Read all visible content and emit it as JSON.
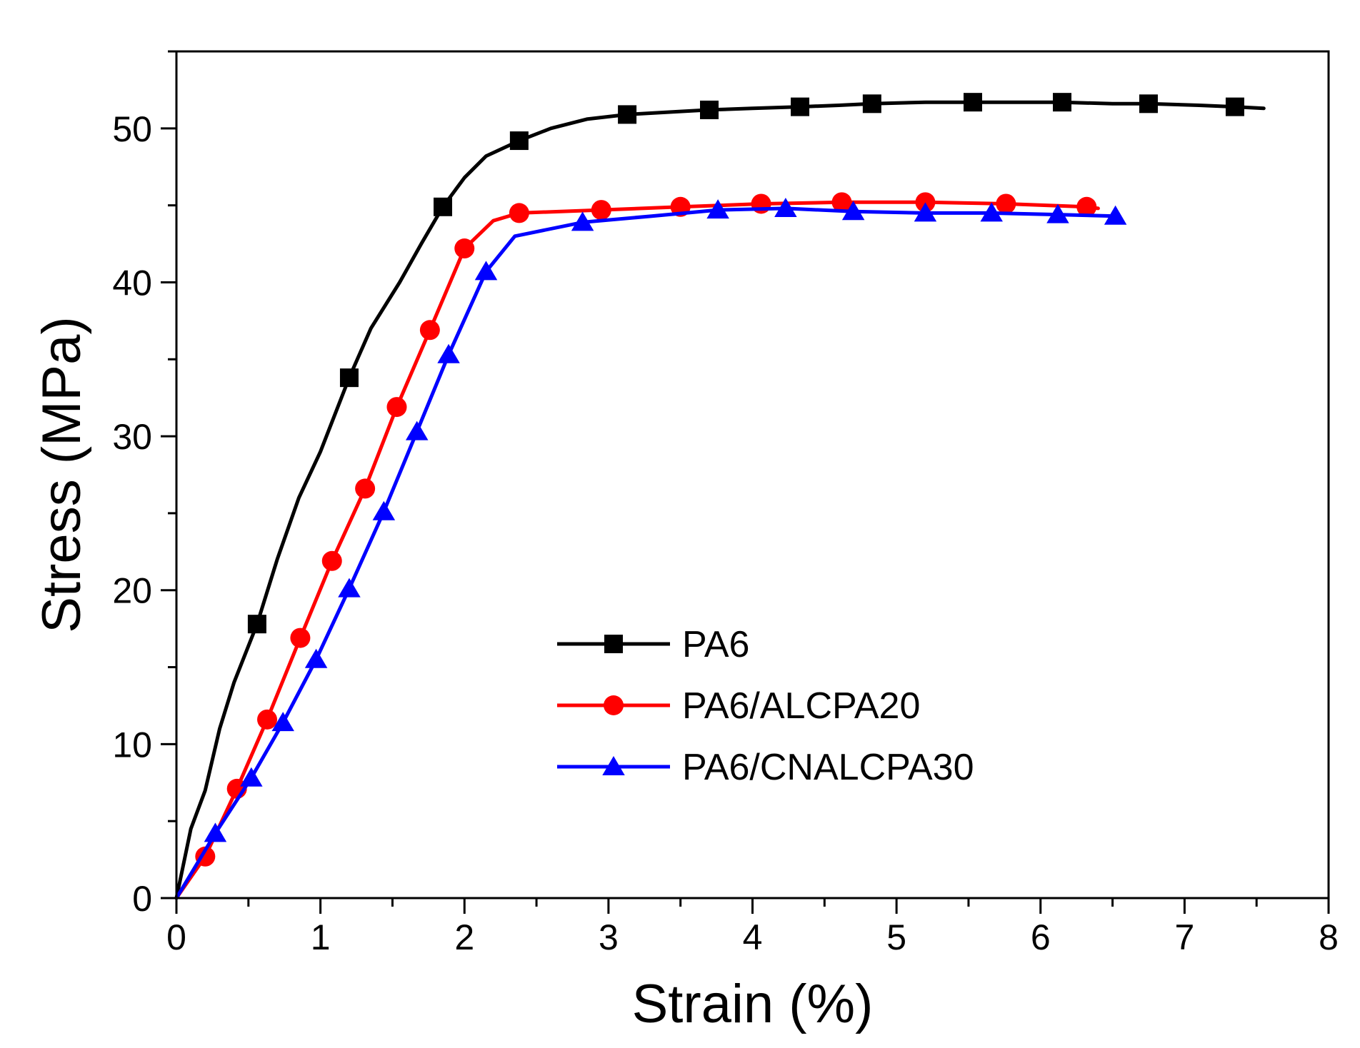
{
  "chart_data": {
    "type": "line",
    "title": "",
    "xlabel": "Strain (%)",
    "ylabel": "Stress (MPa)",
    "xlim": [
      0,
      8
    ],
    "ylim": [
      0,
      55
    ],
    "xticks": [
      0,
      1,
      2,
      3,
      4,
      5,
      6,
      7,
      8
    ],
    "yticks": [
      0,
      10,
      20,
      30,
      40,
      50
    ],
    "grid": false,
    "legend_position": "lower-center",
    "series": [
      {
        "name": "PA6",
        "color": "#000000",
        "marker": "square",
        "x": [
          0,
          0.1,
          0.2,
          0.3,
          0.4,
          0.56,
          0.7,
          0.85,
          1.0,
          1.2,
          1.35,
          1.55,
          1.7,
          1.85,
          2.0,
          2.15,
          2.38,
          2.6,
          2.85,
          3.13,
          3.5,
          3.7,
          4.0,
          4.33,
          4.6,
          4.83,
          5.2,
          5.53,
          5.9,
          6.15,
          6.5,
          6.75,
          7.1,
          7.35,
          7.55
        ],
        "y": [
          0,
          4.5,
          7,
          11,
          14,
          17.8,
          22,
          26,
          29,
          33.8,
          37,
          40,
          42.5,
          44.9,
          46.8,
          48.2,
          49.2,
          50,
          50.6,
          50.9,
          51.1,
          51.2,
          51.3,
          51.4,
          51.5,
          51.6,
          51.7,
          51.7,
          51.7,
          51.7,
          51.6,
          51.6,
          51.5,
          51.4,
          51.3
        ],
        "marker_x": [
          0.56,
          1.2,
          1.85,
          2.38,
          3.13,
          3.7,
          4.33,
          4.83,
          5.53,
          6.15,
          6.75,
          7.35
        ],
        "marker_y": [
          17.8,
          33.8,
          44.9,
          49.2,
          50.9,
          51.2,
          51.4,
          51.6,
          51.7,
          51.7,
          51.6,
          51.4
        ]
      },
      {
        "name": "PA6/ALCPA20",
        "color": "#ff0000",
        "marker": "circle",
        "x": [
          0,
          0.2,
          0.42,
          0.63,
          0.86,
          1.08,
          1.31,
          1.53,
          1.76,
          2.0,
          2.2,
          2.38,
          2.95,
          3.5,
          4.06,
          4.62,
          5.2,
          5.76,
          6.32,
          6.4
        ],
        "y": [
          0,
          2.7,
          7.1,
          11.6,
          16.9,
          21.9,
          26.6,
          31.9,
          36.9,
          42.2,
          44.0,
          44.5,
          44.7,
          44.9,
          45.1,
          45.2,
          45.2,
          45.1,
          44.9,
          44.8
        ],
        "marker_x": [
          0.2,
          0.42,
          0.63,
          0.86,
          1.08,
          1.31,
          1.53,
          1.76,
          2.0,
          2.38,
          2.95,
          3.5,
          4.06,
          4.62,
          5.2,
          5.76,
          6.32
        ],
        "marker_y": [
          2.7,
          7.1,
          11.6,
          16.9,
          21.9,
          26.6,
          31.9,
          36.9,
          42.2,
          44.5,
          44.7,
          44.9,
          45.1,
          45.2,
          45.2,
          45.1,
          44.9
        ]
      },
      {
        "name": "PA6/CNALCPA30",
        "color": "#0000ff",
        "marker": "triangle",
        "x": [
          0,
          0.27,
          0.52,
          0.74,
          0.97,
          1.2,
          1.44,
          1.67,
          1.89,
          2.15,
          2.35,
          2.82,
          3.3,
          3.76,
          4.23,
          4.7,
          5.2,
          5.66,
          6.12,
          6.52
        ],
        "y": [
          0,
          4.2,
          7.8,
          11.4,
          15.5,
          20.1,
          25.1,
          30.3,
          35.3,
          40.7,
          43.0,
          43.9,
          44.3,
          44.7,
          44.8,
          44.6,
          44.5,
          44.5,
          44.4,
          44.3
        ],
        "marker_x": [
          0.27,
          0.52,
          0.74,
          0.97,
          1.2,
          1.44,
          1.67,
          1.89,
          2.15,
          2.82,
          3.76,
          4.23,
          4.7,
          5.2,
          5.66,
          6.12,
          6.52
        ],
        "marker_y": [
          4.2,
          7.8,
          11.4,
          15.5,
          20.1,
          25.1,
          30.3,
          35.3,
          40.7,
          43.9,
          44.7,
          44.8,
          44.6,
          44.5,
          44.5,
          44.4,
          44.3
        ]
      }
    ]
  }
}
